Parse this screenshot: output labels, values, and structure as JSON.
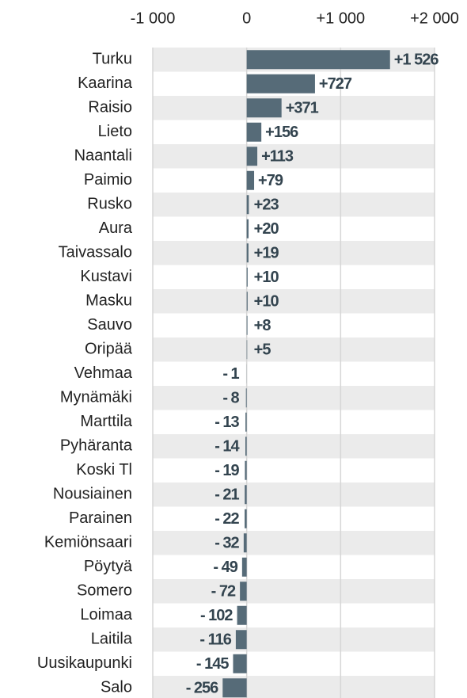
{
  "chart_data": {
    "type": "bar",
    "orientation": "horizontal",
    "categories": [
      "Turku",
      "Kaarina",
      "Raisio",
      "Lieto",
      "Naantali",
      "Paimio",
      "Rusko",
      "Aura",
      "Taivassalo",
      "Kustavi",
      "Masku",
      "Sauvo",
      "Oripää",
      "Vehmaa",
      "Mynämäki",
      "Marttila",
      "Pyhäranta",
      "Koski Tl",
      "Nousiainen",
      "Parainen",
      "Kemiönsaari",
      "Pöytyä",
      "Somero",
      "Loimaa",
      "Laitila",
      "Uusikaupunki",
      "Salo"
    ],
    "values": [
      1526,
      727,
      371,
      156,
      113,
      79,
      23,
      20,
      19,
      10,
      10,
      8,
      5,
      -1,
      -8,
      -13,
      -14,
      -19,
      -21,
      -22,
      -32,
      -49,
      -72,
      -102,
      -116,
      -145,
      -256
    ],
    "value_labels": [
      "+1 526",
      "+727",
      "+371",
      "+156",
      "+113",
      "+79",
      "+23",
      "+20",
      "+19",
      "+10",
      "+10",
      "+8",
      "+5",
      "- 1",
      "- 8",
      "- 13",
      "- 14",
      "- 19",
      "- 21",
      "- 22",
      "- 32",
      "- 49",
      "- 72",
      "- 102",
      "- 116",
      "- 145",
      "- 256"
    ],
    "color": "#566b78",
    "xlim": [
      -1000,
      2000
    ],
    "xticks": [
      {
        "value": -1000,
        "label": "-1 000"
      },
      0,
      {
        "value": 1000,
        "label": "+1 000"
      },
      {
        "value": 2000,
        "label": "+2 000"
      }
    ],
    "grid": true
  }
}
